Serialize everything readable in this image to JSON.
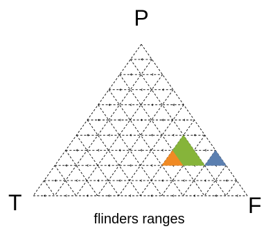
{
  "vertices": {
    "top": "P",
    "left": "T",
    "right": "F"
  },
  "caption": "flinders ranges",
  "grid_divisions": 10,
  "colors": {
    "orange": "#f08a24",
    "green": "#86b43a",
    "blue": "#5b7fb0",
    "grid": "#000000"
  },
  "regions": [
    {
      "name": "orange-region",
      "color": "orange",
      "cells": [
        [
          2,
          5,
          "up"
        ],
        [
          2,
          5,
          "down"
        ]
      ]
    },
    {
      "name": "green-region",
      "color": "green",
      "cells": [
        [
          2,
          6,
          "up"
        ],
        [
          2,
          5,
          "down"
        ],
        [
          3,
          5,
          "up"
        ]
      ]
    },
    {
      "name": "blue-region",
      "color": "blue",
      "cells": [
        [
          2,
          7,
          "up"
        ]
      ]
    }
  ]
}
